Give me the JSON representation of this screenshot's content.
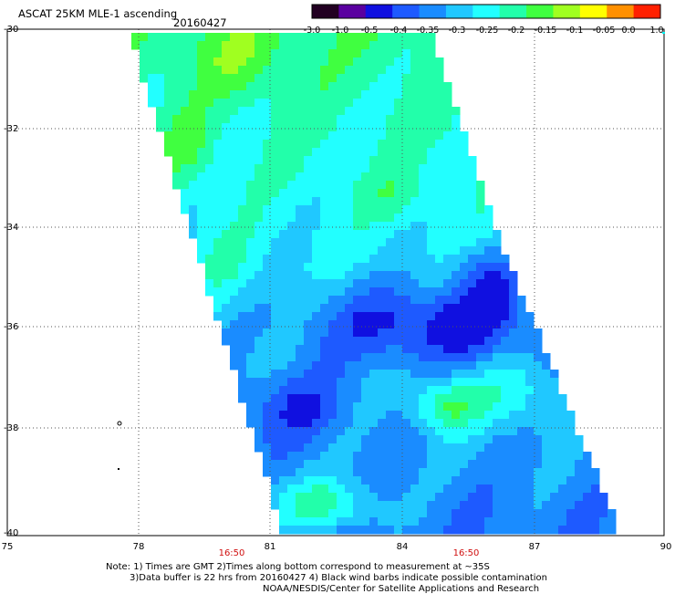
{
  "map": {
    "title": "ASCAT 25KM MLE-1 ascending",
    "date": "20160427",
    "y_ticks": [
      "-30",
      "-32",
      "-34",
      "-36",
      "-38",
      "-40"
    ],
    "x_ticks": [
      "75",
      "78",
      "81",
      "84",
      "87",
      "90"
    ],
    "time_labels": [
      "16:50",
      "16:50"
    ],
    "colorbar": {
      "labels": [
        "-3.0",
        "-1.0",
        "-0.5",
        "-0.4",
        "-0.35",
        "-0.3",
        "-0.25",
        "-0.2",
        "-0.15",
        "-0.1",
        "-0.05",
        "0.0",
        "1.0"
      ],
      "colors": [
        "#220022",
        "#5a00a0",
        "#1010e0",
        "#1e5aff",
        "#1a8cff",
        "#20c8ff",
        "#22ffff",
        "#22ffaa",
        "#40ff40",
        "#a0ff20",
        "#ffff00",
        "#ff9000",
        "#ff2000"
      ]
    },
    "notes": [
      "Note: 1) Times are GMT 2)Times along bottom correspond to measurement at ~35S",
      "3)Data buffer is 22 hrs from 20160427 4) Black wind barbs indicate possible contamination",
      "NOAA/NESDIS/Center for Satellite Applications and Research"
    ],
    "colors": {
      "grid": "#555555",
      "time_label": "#d01010"
    }
  }
}
